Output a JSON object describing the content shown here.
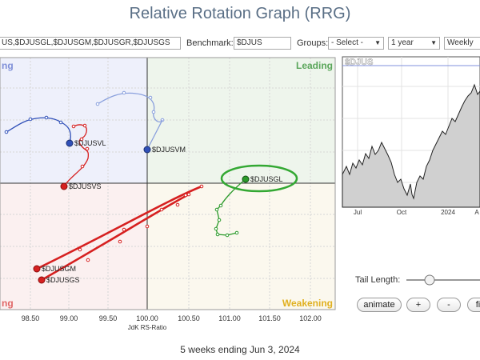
{
  "app": {
    "title": "Relative Rotation Graph (RRG)"
  },
  "toolbar": {
    "symbols_value": "US,$DJUSGL,$DJUSGM,$DJUSGR,$DJUSGS",
    "benchmark_label": "Benchmark:",
    "benchmark_value": "$DJUS",
    "groups_label": "Groups:",
    "groups_value": "- Select -",
    "period_value": "1 year",
    "frequency_value": "Weekly"
  },
  "rrg": {
    "quadrants": {
      "top_left": "ng",
      "leading": "Leading",
      "lagging": "ng",
      "weakening": "Weakening"
    },
    "x_ticks": [
      "98.50",
      "99.00",
      "99.50",
      "100.00",
      "100.50",
      "101.00",
      "101.50",
      "102.00"
    ],
    "x_axis_label": "JdK RS-Ratio",
    "colors": {
      "improving": "#eef0fb",
      "leading": "#eef5ec",
      "lagging": "#fbf0f0",
      "weakening": "#fbf8ee",
      "blue": "#3050b8",
      "red": "#d62020",
      "green": "#2b9a2b",
      "highlight": "#33a833"
    },
    "series": [
      {
        "name": "$DJUSVL",
        "color": "#3050b8"
      },
      {
        "name": "$DJUSVM",
        "color": "#8aa0dd"
      },
      {
        "name": "$DJUSVS",
        "color": "#d62020"
      },
      {
        "name": "$DJUSGL",
        "color": "#2b9a2b"
      },
      {
        "name": "$DJUSGM",
        "color": "#d62020"
      },
      {
        "name": "$DJUSGS",
        "color": "#d62020"
      }
    ]
  },
  "mini_chart": {
    "symbol": "$DJUS",
    "x_ticks": [
      "Jul",
      "Oct",
      "2024",
      "A"
    ]
  },
  "controls": {
    "tail_length_label": "Tail Length:",
    "tail_length_fraction": 0.25,
    "animate_label": "animate",
    "plus_label": "+",
    "minus_label": "-",
    "fit_label": "fit"
  },
  "footer": {
    "status": "5 weeks ending Jun 3, 2024"
  }
}
